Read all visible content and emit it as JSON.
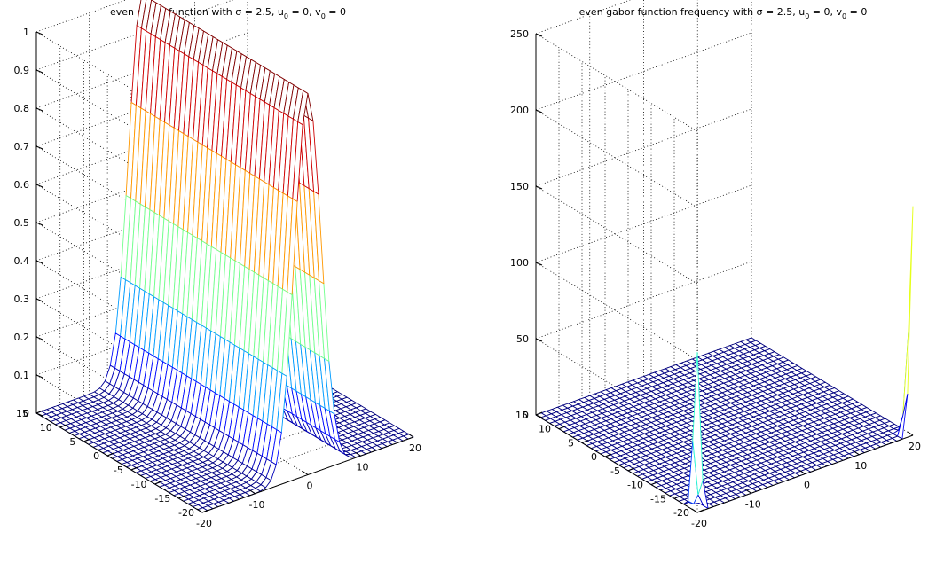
{
  "chart_data": [
    {
      "type": "surface",
      "title_main": "even gabor function with σ = 2.5, u",
      "title_sub1": "0",
      "title_mid": " = 0, v",
      "title_sub2": "0",
      "title_end": " = 0",
      "function": "exp(-x^2/(2*sigma^2)) constant along y",
      "sigma": 2.5,
      "u0": 0,
      "v0": 0,
      "x_ticks": [
        "-20",
        "-10",
        "0",
        "10",
        "20"
      ],
      "y_ticks": [
        "-20",
        "-15",
        "-10",
        "-5",
        "0",
        "5",
        "10",
        "15"
      ],
      "z_ticks": [
        "0",
        "0.1",
        "0.2",
        "0.3",
        "0.4",
        "0.5",
        "0.6",
        "0.7",
        "0.8",
        "0.9",
        "1"
      ],
      "xlim": [
        -20,
        20
      ],
      "ylim": [
        -20,
        15
      ],
      "zlim": [
        0,
        1
      ],
      "grid": true,
      "colormap": "jet"
    },
    {
      "type": "surface",
      "title_main": "even gabor function frequency with σ = 2.5, u",
      "title_sub1": "0",
      "title_mid": " = 0, v",
      "title_sub2": "0",
      "title_end": " = 0",
      "function": "spectrum with peaks at x = -20 and x = 20 along y = -20 edge",
      "peak_values": [
        {
          "x": -20,
          "z": 105
        },
        {
          "x": 20,
          "z": 150
        }
      ],
      "x_ticks": [
        "-20",
        "-10",
        "0",
        "10",
        "20"
      ],
      "y_ticks": [
        "-20",
        "-15",
        "-10",
        "-5",
        "0",
        "5",
        "10",
        "15"
      ],
      "z_ticks": [
        "0",
        "50",
        "100",
        "150",
        "200",
        "250"
      ],
      "xlim": [
        -20,
        20
      ],
      "ylim": [
        -20,
        15
      ],
      "zlim": [
        0,
        250
      ],
      "grid": true,
      "colormap": "jet"
    }
  ]
}
